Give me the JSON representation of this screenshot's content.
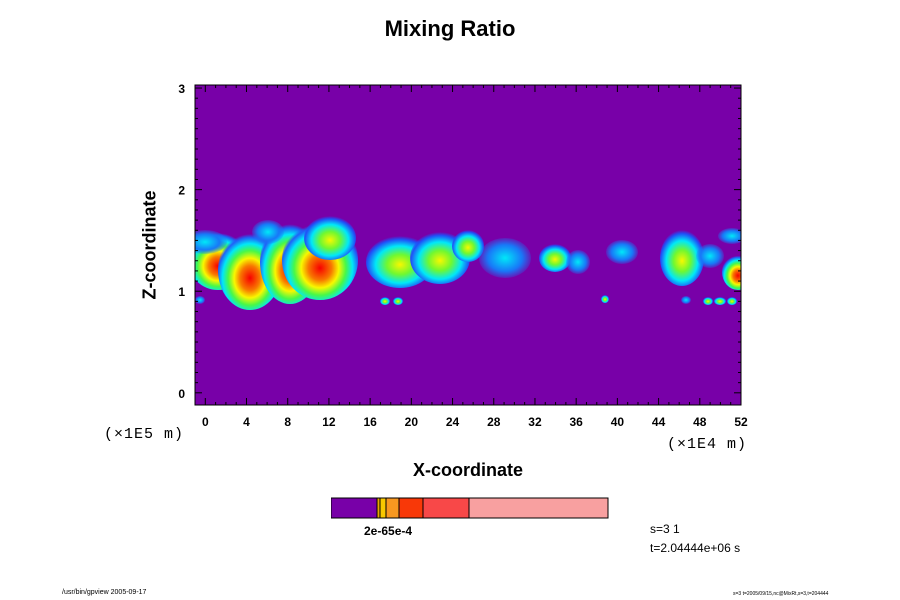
{
  "chart_data": {
    "type": "heatmap",
    "title": "Mixing Ratio",
    "xlabel": "X-coordinate",
    "ylabel": "Z-coordinate",
    "x_unit_label": "(×1E4 m)",
    "y_unit_label": "(×1E5 m)",
    "xlim": [
      -1,
      52
    ],
    "ylim": [
      -0.12,
      3.03
    ],
    "x_ticks": [
      "0",
      "4",
      "8",
      "12",
      "16",
      "20",
      "24",
      "28",
      "32",
      "36",
      "40",
      "44",
      "48",
      "52"
    ],
    "y_ticks": [
      "0",
      "1",
      "2",
      "3"
    ],
    "background_color": "#7800a8",
    "colorbar": {
      "colors": [
        "#7800a8",
        "#e8a800",
        "#f8c800",
        "#f89820",
        "#f83808",
        "#f84848",
        "#f8a0a0"
      ],
      "label": "2e-65e-4"
    },
    "cloud_bands": [
      {
        "x": [
          -1,
          26
        ],
        "z_bottom": 0.85,
        "z_top": 1.68,
        "level": "strong"
      },
      {
        "x": [
          26,
          40
        ],
        "z_bottom": 1.18,
        "z_top": 1.52,
        "level": "moderate"
      },
      {
        "x": [
          45,
          52
        ],
        "z_bottom": 0.88,
        "z_top": 1.62,
        "level": "strong"
      }
    ]
  },
  "info": {
    "step": "s=3 1",
    "time": "t=2.04444e+06 s"
  },
  "footer": {
    "left": "/usr/bin/gpview 2005-09-17",
    "right": "s=3 t=2005/09/15,nc@MixRt,s=3,t=204444"
  }
}
